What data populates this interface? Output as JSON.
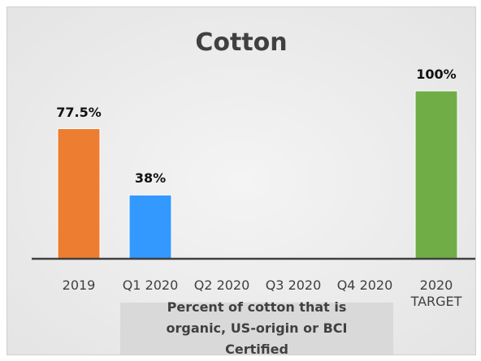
{
  "chart_data": {
    "type": "bar",
    "title": "Cotton",
    "xlabel": "Percent of cotton that is organic, US-origin or BCI Certified",
    "categories": [
      "2019",
      "Q1 2020",
      "Q2 2020",
      "Q3 2020",
      "Q4 2020",
      "2020 TARGET"
    ],
    "values": [
      77.5,
      38,
      null,
      null,
      null,
      100
    ],
    "value_labels": [
      "77.5%",
      "38%",
      null,
      null,
      null,
      "100%"
    ],
    "colors": [
      "#ed7d31",
      "#3399ff",
      null,
      null,
      null,
      "#70ad47"
    ],
    "ylim": [
      0,
      100
    ]
  }
}
